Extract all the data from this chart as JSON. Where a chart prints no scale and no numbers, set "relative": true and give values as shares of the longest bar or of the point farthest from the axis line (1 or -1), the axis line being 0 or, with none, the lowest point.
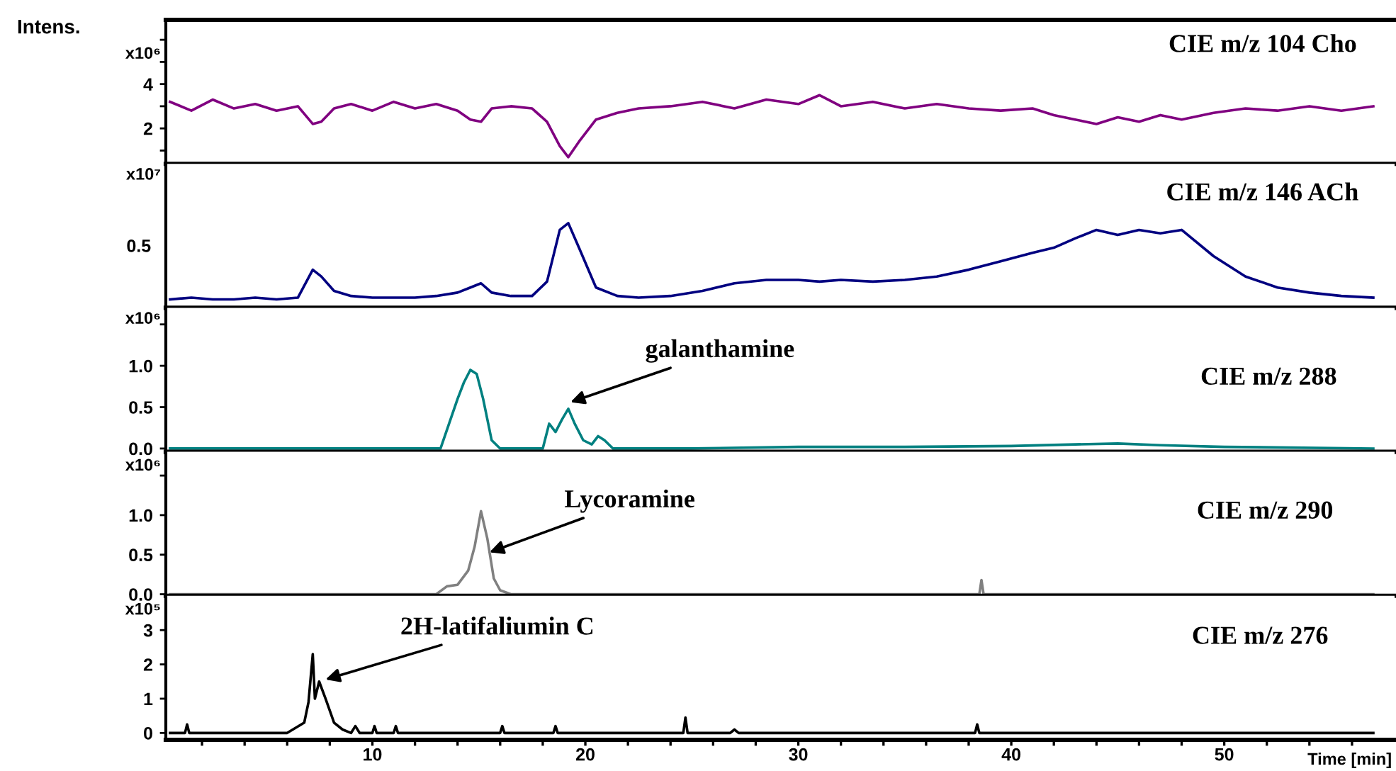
{
  "chart_data": [
    {
      "type": "line",
      "ylabel": "Intens.",
      "annotations": [
        "x10⁶",
        "CIE m/z 104 Cho"
      ],
      "tick_labels": "y",
      "xlim": [
        0.3,
        58
      ],
      "ylim": [
        0.4,
        6.9
      ],
      "yticks": [
        {
          "value": 1,
          "label": null
        },
        2,
        {
          "value": 3,
          "label": null
        },
        4,
        {
          "value": 5,
          "label": null
        },
        {
          "value": 6,
          "label": null
        }
      ],
      "x": [
        0.5,
        1.5,
        2.5,
        3.5,
        4.5,
        5.5,
        6.5,
        7.2,
        7.6,
        8.2,
        9,
        10,
        11,
        12,
        13,
        14,
        14.6,
        15.1,
        15.6,
        16.5,
        17.5,
        18.2,
        18.8,
        19.2,
        19.7,
        20.5,
        21.5,
        22.5,
        24,
        25.5,
        27,
        28.5,
        30,
        31,
        32,
        33.5,
        35,
        36.5,
        38,
        39.5,
        41,
        42,
        43,
        44,
        45,
        46,
        47,
        48,
        49.5,
        51,
        52.5,
        54,
        55.5,
        57
      ],
      "series": [
        {
          "color": "#800080",
          "values": [
            3.2,
            2.8,
            3.3,
            2.9,
            3.1,
            2.8,
            3.0,
            2.2,
            2.3,
            2.9,
            3.1,
            2.8,
            3.2,
            2.9,
            3.1,
            2.8,
            2.4,
            2.3,
            2.9,
            3.0,
            2.9,
            2.3,
            1.2,
            0.7,
            1.4,
            2.4,
            2.7,
            2.9,
            3.0,
            3.2,
            2.9,
            3.3,
            3.1,
            3.5,
            3.0,
            3.2,
            2.9,
            3.1,
            2.9,
            2.8,
            2.9,
            2.6,
            2.4,
            2.2,
            2.5,
            2.3,
            2.6,
            2.4,
            2.7,
            2.9,
            2.8,
            3.0,
            2.8,
            3.0
          ]
        }
      ]
    },
    {
      "type": "line",
      "annotations": [
        "x10⁷",
        "CIE m/z 146 ACh",
        "0.5"
      ],
      "relative": true,
      "tick_labels": false,
      "xlim": [
        0.3,
        58
      ],
      "x": [
        0.5,
        1.5,
        2.5,
        3.5,
        4.5,
        5.5,
        6.5,
        7.2,
        7.6,
        8.2,
        9,
        10,
        11,
        12,
        13,
        14,
        14.6,
        15.1,
        15.6,
        16.5,
        17.5,
        18.2,
        18.8,
        19.2,
        19.7,
        20.5,
        21.5,
        22.5,
        24,
        25.5,
        27,
        28.5,
        30,
        31,
        32,
        33.5,
        35,
        36.5,
        38,
        39.5,
        41,
        42,
        43,
        44,
        45,
        46,
        47,
        48,
        49.5,
        51,
        52.5,
        54,
        55.5,
        57
      ],
      "series": [
        {
          "color": "#000080",
          "values": [
            0.1,
            0.12,
            0.1,
            0.1,
            0.12,
            0.1,
            0.12,
            0.45,
            0.37,
            0.2,
            0.14,
            0.12,
            0.12,
            0.12,
            0.14,
            0.18,
            0.24,
            0.29,
            0.18,
            0.14,
            0.14,
            0.31,
            0.92,
            1.0,
            0.71,
            0.24,
            0.14,
            0.12,
            0.14,
            0.2,
            0.29,
            0.33,
            0.33,
            0.31,
            0.33,
            0.31,
            0.33,
            0.37,
            0.45,
            0.55,
            0.65,
            0.71,
            0.82,
            0.92,
            0.86,
            0.92,
            0.88,
            0.92,
            0.61,
            0.37,
            0.24,
            0.18,
            0.14,
            0.12
          ]
        }
      ]
    },
    {
      "type": "line",
      "annotations": [
        "x10⁶",
        "CIE m/z 288",
        {
          "text": "galanthamine",
          "x": 19.3,
          "y": 0.56
        }
      ],
      "tick_labels": "y",
      "xlim": [
        0.3,
        58
      ],
      "ylim": [
        -0.04,
        1.7
      ],
      "yticks": [
        {
          "value": 0,
          "label": "0.0"
        },
        0.5,
        {
          "value": 1,
          "label": "1.0"
        },
        {
          "value": 1.5,
          "label": null
        }
      ],
      "x": [
        0.5,
        5,
        10,
        13.2,
        13.6,
        14.0,
        14.3,
        14.6,
        14.9,
        15.2,
        15.6,
        16,
        18,
        18.3,
        18.6,
        18.9,
        19.2,
        19.5,
        19.9,
        20.3,
        20.6,
        20.9,
        21.3,
        25,
        30,
        35,
        40,
        43,
        45,
        47,
        50,
        57
      ],
      "series": [
        {
          "color": "#008080",
          "values": [
            0,
            0,
            0,
            0,
            0.3,
            0.6,
            0.8,
            0.95,
            0.9,
            0.6,
            0.1,
            0,
            0,
            0.3,
            0.2,
            0.35,
            0.48,
            0.3,
            0.1,
            0.05,
            0.15,
            0.1,
            0,
            0,
            0.02,
            0.02,
            0.03,
            0.05,
            0.06,
            0.04,
            0.02,
            0
          ]
        }
      ]
    },
    {
      "type": "line",
      "annotations": [
        "x10⁶",
        "CIE m/z 290",
        {
          "text": "Lycoramine",
          "x": 15.5,
          "y": 0.53
        }
      ],
      "tick_labels": "y",
      "xlim": [
        0.3,
        58
      ],
      "ylim": [
        -0.02,
        1.8
      ],
      "yticks": [
        {
          "value": 0,
          "label": "0.0"
        },
        0.5,
        {
          "value": 1,
          "label": "1.0"
        },
        {
          "value": 1.5,
          "label": null
        }
      ],
      "x": [
        0.5,
        10,
        13,
        13.5,
        14,
        14.5,
        14.8,
        15.1,
        15.4,
        15.7,
        16.0,
        16.5,
        20,
        30,
        38.5,
        38.6,
        38.7,
        45,
        57
      ],
      "series": [
        {
          "color": "#808080",
          "values": [
            0,
            0,
            0,
            0.1,
            0.12,
            0.3,
            0.6,
            1.05,
            0.7,
            0.2,
            0.05,
            0,
            0,
            0,
            0,
            0.18,
            0,
            0,
            0
          ]
        }
      ]
    },
    {
      "type": "line",
      "xlabel": "Time [min]",
      "annotations": [
        "x10⁵",
        "CIE m/z 276",
        {
          "text": "2H-latifaliumin C",
          "x": 7.8,
          "y": 1.56
        }
      ],
      "xlim": [
        0.3,
        58
      ],
      "ylim": [
        -0.2,
        4.0
      ],
      "yticks": [
        0,
        1,
        2,
        3
      ],
      "xticks": [
        {
          "value": 2,
          "label": null
        },
        {
          "value": 4,
          "label": null
        },
        {
          "value": 6,
          "label": null
        },
        {
          "value": 8,
          "label": null
        },
        10,
        {
          "value": 12,
          "label": null
        },
        {
          "value": 14,
          "label": null
        },
        {
          "value": 16,
          "label": null
        },
        {
          "value": 18,
          "label": null
        },
        20,
        {
          "value": 22,
          "label": null
        },
        {
          "value": 24,
          "label": null
        },
        {
          "value": 26,
          "label": null
        },
        {
          "value": 28,
          "label": null
        },
        30,
        {
          "value": 32,
          "label": null
        },
        {
          "value": 34,
          "label": null
        },
        {
          "value": 36,
          "label": null
        },
        {
          "value": 38,
          "label": null
        },
        40,
        {
          "value": 42,
          "label": null
        },
        {
          "value": 44,
          "label": null
        },
        {
          "value": 46,
          "label": null
        },
        {
          "value": 48,
          "label": null
        },
        50,
        {
          "value": 52,
          "label": null
        },
        {
          "value": 54,
          "label": null
        },
        {
          "value": 56,
          "label": null
        }
      ],
      "x": [
        0.5,
        1.2,
        1.3,
        1.4,
        6,
        6.8,
        7.0,
        7.2,
        7.3,
        7.5,
        7.8,
        8.2,
        8.6,
        9,
        9.2,
        9.4,
        10,
        10.1,
        10.2,
        11,
        11.1,
        11.2,
        16,
        16.1,
        16.2,
        18.5,
        18.6,
        18.7,
        24.6,
        24.7,
        24.8,
        26.8,
        27,
        27.2,
        38.3,
        38.4,
        38.5,
        57
      ],
      "series": [
        {
          "color": "#000000",
          "values": [
            0,
            0,
            0.25,
            0,
            0,
            0.3,
            0.9,
            2.3,
            1.0,
            1.5,
            1.0,
            0.3,
            0.1,
            0,
            0.2,
            0,
            0,
            0.2,
            0,
            0,
            0.2,
            0,
            0,
            0.2,
            0,
            0,
            0.2,
            0,
            0,
            0.45,
            0,
            0,
            0.1,
            0,
            0,
            0.25,
            0,
            0
          ]
        }
      ]
    }
  ]
}
